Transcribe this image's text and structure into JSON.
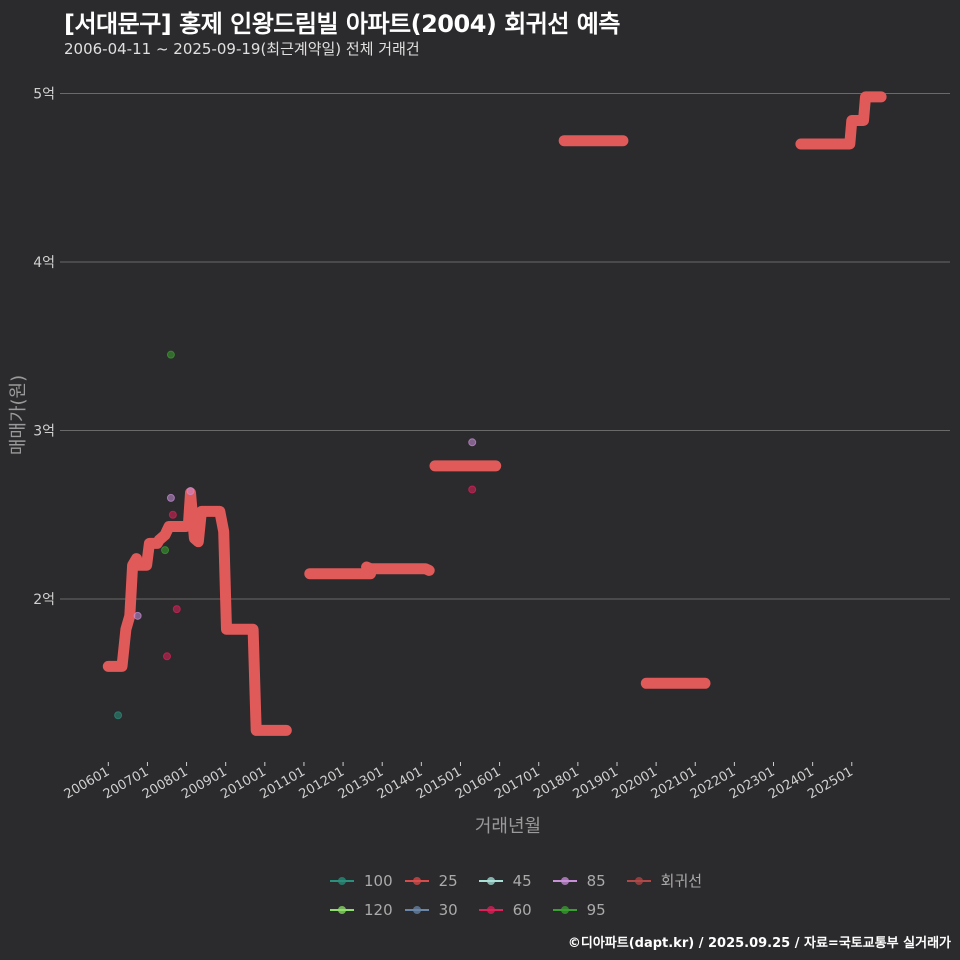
{
  "header": {
    "title": "[서대문구] 홍제 인왕드림빌 아파트(2004) 회귀선 예측",
    "subtitle": "2006-04-11 ~ 2025-09-19(최근계약일) 전체 거래건"
  },
  "footer": {
    "credit": "©디아파트(dapt.kr) / 2025.09.25 / 자료=국토교통부 실거래가"
  },
  "colors": {
    "background": "#2b2a2c",
    "gridline": "#6a6a6a",
    "regression": "#e05a5a",
    "s100": "#2a8f7c",
    "s25": "#d94b4b",
    "s45": "#a8e0d8",
    "s85": "#c890d8",
    "s120": "#8ee06a",
    "s30": "#6a86a8",
    "s60": "#e0205a",
    "s95": "#3aa030"
  },
  "chart_data": {
    "type": "line",
    "title": "[서대문구] 홍제 인왕드림빌 아파트(2004) 회귀선 예측",
    "subtitle": "2006-04-11 ~ 2025-09-19(최근계약일) 전체 거래건",
    "xlabel": "거래년월",
    "ylabel": "매매가(원)",
    "x_ticks": [
      "200601",
      "200701",
      "200801",
      "200901",
      "201001",
      "201101",
      "201201",
      "201301",
      "201401",
      "201501",
      "201601",
      "201701",
      "201801",
      "201901",
      "202001",
      "202101",
      "202201",
      "202301",
      "202401",
      "202501"
    ],
    "y_ticks": [
      "2억",
      "3억",
      "4억",
      "5억"
    ],
    "y_tick_values": [
      2,
      3,
      4,
      5
    ],
    "ylim": [
      1.0,
      5.1
    ],
    "xlim": [
      2005.0,
      2027.2
    ],
    "grid": "horizontal",
    "legend_position": "bottom",
    "legend": [
      "100",
      "25",
      "45",
      "85",
      "회귀선",
      "120",
      "30",
      "60",
      "95"
    ],
    "regression_segments": [
      [
        [
          2006.0,
          1.6
        ],
        [
          2006.35,
          1.6
        ],
        [
          2006.45,
          1.82
        ],
        [
          2006.55,
          1.9
        ],
        [
          2006.62,
          2.2
        ],
        [
          2006.72,
          2.24
        ],
        [
          2006.75,
          2.2
        ],
        [
          2006.98,
          2.2
        ],
        [
          2007.05,
          2.33
        ],
        [
          2007.25,
          2.33
        ],
        [
          2007.3,
          2.35
        ],
        [
          2007.45,
          2.38
        ],
        [
          2007.55,
          2.43
        ],
        [
          2007.98,
          2.43
        ],
        [
          2008.05,
          2.45
        ],
        [
          2008.1,
          2.63
        ],
        [
          2008.2,
          2.36
        ],
        [
          2008.3,
          2.34
        ],
        [
          2008.38,
          2.52
        ],
        [
          2008.85,
          2.52
        ],
        [
          2008.95,
          2.4
        ],
        [
          2009.02,
          1.82
        ],
        [
          2009.7,
          1.82
        ],
        [
          2009.78,
          1.22
        ],
        [
          2010.55,
          1.22
        ]
      ],
      [
        [
          2011.15,
          2.15
        ],
        [
          2012.7,
          2.15
        ]
      ],
      [
        [
          2012.6,
          2.19
        ],
        [
          2012.7,
          2.18
        ],
        [
          2014.1,
          2.18
        ],
        [
          2014.2,
          2.17
        ]
      ],
      [
        [
          2014.35,
          2.79
        ],
        [
          2015.9,
          2.79
        ]
      ],
      [
        [
          2017.65,
          4.72
        ],
        [
          2019.15,
          4.72
        ]
      ],
      [
        [
          2019.75,
          1.5
        ],
        [
          2021.25,
          1.5
        ]
      ],
      [
        [
          2023.7,
          4.7
        ],
        [
          2024.95,
          4.7
        ],
        [
          2025.0,
          4.84
        ],
        [
          2025.3,
          4.84
        ],
        [
          2025.35,
          4.98
        ],
        [
          2025.75,
          4.98
        ]
      ]
    ],
    "series": [
      {
        "name": "100",
        "points": [
          [
            2006.25,
            1.31
          ]
        ]
      },
      {
        "name": "25",
        "points": []
      },
      {
        "name": "45",
        "points": []
      },
      {
        "name": "85",
        "points": [
          [
            2006.75,
            1.9
          ],
          [
            2007.6,
            2.6
          ],
          [
            2015.3,
            2.93
          ],
          [
            2008.1,
            2.64
          ]
        ]
      },
      {
        "name": "120",
        "points": []
      },
      {
        "name": "30",
        "points": []
      },
      {
        "name": "60",
        "points": [
          [
            2007.5,
            1.66
          ],
          [
            2007.65,
            2.5
          ],
          [
            2007.75,
            1.94
          ],
          [
            2015.3,
            2.65
          ]
        ]
      },
      {
        "name": "95",
        "points": [
          [
            2007.6,
            3.45
          ],
          [
            2007.45,
            2.29
          ]
        ]
      }
    ]
  },
  "axes": {
    "xlabel": "거래년월",
    "ylabel": "매매가(원)"
  },
  "legend": {
    "row1": [
      {
        "label": "100",
        "color": "#2a8f7c"
      },
      {
        "label": "25",
        "color": "#d94b4b"
      },
      {
        "label": "45",
        "color": "#a8e0d8"
      },
      {
        "label": "85",
        "color": "#c890d8"
      },
      {
        "label": "회귀선",
        "color": "#b04848"
      }
    ],
    "row2": [
      {
        "label": "120",
        "color": "#8ee06a"
      },
      {
        "label": "30",
        "color": "#6a86a8"
      },
      {
        "label": "60",
        "color": "#e0205a"
      },
      {
        "label": "95",
        "color": "#3aa030"
      }
    ]
  }
}
